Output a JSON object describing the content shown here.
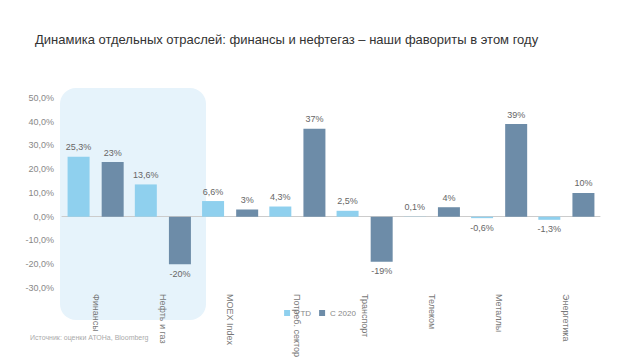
{
  "chart_data": {
    "type": "bar",
    "title": "Динамика отдельных отраслей: финансы и нефтегаз – наши фавориты в этом году",
    "annotation": "Источник: оценки АТОНа, Bloomberg",
    "categories": [
      "Финансы",
      "Нефть и газ",
      "MOEX Index",
      "Потреб. сектор",
      "Транспорт",
      "Телеком",
      "Металлы",
      "Энергетика"
    ],
    "series": [
      {
        "name": "YTD",
        "color": "#8fd0ee",
        "values": [
          25.3,
          13.6,
          6.6,
          4.3,
          2.5,
          0.1,
          -0.6,
          -1.3
        ],
        "value_labels": [
          "25,3%",
          "13,6%",
          "6,6%",
          "4,3%",
          "2,5%",
          "0,1%",
          "-0,6%",
          "-1,3%"
        ]
      },
      {
        "name": "С 2020",
        "color": "#6d8ca8",
        "values": [
          23,
          -20,
          3,
          37,
          -19,
          4,
          39,
          10
        ],
        "value_labels": [
          "23%",
          "-20%",
          "3%",
          "37%",
          "-19%",
          "4%",
          "39%",
          "10%"
        ]
      }
    ],
    "ylim": [
      -30,
      50
    ],
    "yticks": [
      {
        "value": -30,
        "label": "-30,0%"
      },
      {
        "value": -20,
        "label": "-20,0%"
      },
      {
        "value": -10,
        "label": "-10,0%"
      },
      {
        "value": 0,
        "label": "0,0%"
      },
      {
        "value": 10,
        "label": "10,0%"
      },
      {
        "value": 20,
        "label": "20,0%"
      },
      {
        "value": 30,
        "label": "30,0%"
      },
      {
        "value": 40,
        "label": "40,0%"
      },
      {
        "value": 50,
        "label": "50,0%"
      }
    ],
    "grid": false,
    "legend": "bottom",
    "data_labels": true
  }
}
